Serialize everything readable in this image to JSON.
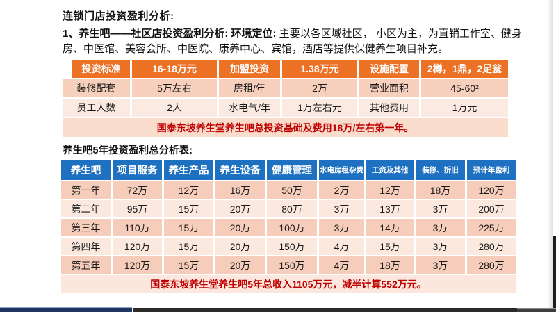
{
  "page": {
    "title": "连锁门店投资盈利分析:",
    "intro_lead": "1、养生吧——社区店投资盈利分析: 环境定位: ",
    "intro_text": "主要以各区域社区， 小区为主，为直销工作室、健身房、中医馆、美容会所、中医院、康养中心、宾馆，酒店等提供保健养生项目补充。",
    "section2_title": "养生吧5年投资盈利总分析表:"
  },
  "table1": {
    "header": [
      "投资标准",
      "16-18万元",
      "加盟投资",
      "1.38万元",
      "设施配置",
      "2樽，1鼎，2足瓮"
    ],
    "rows": [
      [
        "装修配套",
        "5万左右",
        "房租/年",
        "2万",
        "营业面积",
        "45-60²"
      ],
      [
        "员工人数",
        "2人",
        "水电气/年",
        "1万左右元",
        "其他费用",
        "1万元"
      ]
    ],
    "note": "国泰东坡养生堂养生吧总投资基础及费用18万/左右第一年。"
  },
  "table2": {
    "header": [
      "养生吧",
      "项目服务",
      "养生产品",
      "养生设备",
      "健康管理",
      "水电房租杂费",
      "工资及其他",
      "装修、折旧",
      "预计年盈利"
    ],
    "rows": [
      [
        "第一年",
        "72万",
        "12万",
        "16万",
        "50万",
        "2万",
        "12万",
        "18万",
        "120万"
      ],
      [
        "第二年",
        "95万",
        "15万",
        "20万",
        "80万",
        "3万",
        "13万",
        "3万",
        "200万"
      ],
      [
        "第三年",
        "110万",
        "15万",
        "20万",
        "100万",
        "3万",
        "14万",
        "3万",
        "225万"
      ],
      [
        "第四年",
        "120万",
        "15万",
        "20万",
        "150万",
        "4万",
        "15万",
        "3万",
        "280万"
      ],
      [
        "第五年",
        "120万",
        "15万",
        "20万",
        "150万",
        "4万",
        "18万",
        "3万",
        "280万"
      ]
    ],
    "note": "国泰东坡养生堂养生吧5年总收入1105万元，减半计算552万元。"
  },
  "colors": {
    "table1_header_bg": "#ed7125",
    "table1_row_bg": "#f7cfbd",
    "table1_row_alt_bg": "#fbeae1",
    "table2_header_bg": "#1e70c1",
    "table2_row_bg": "#f6cdba",
    "table2_row_alt_bg": "#fbe9e0",
    "note_text": "#c00000",
    "bottom_bar_navy": "#1f3660",
    "bottom_bar_dark": "#2b2b2b"
  }
}
